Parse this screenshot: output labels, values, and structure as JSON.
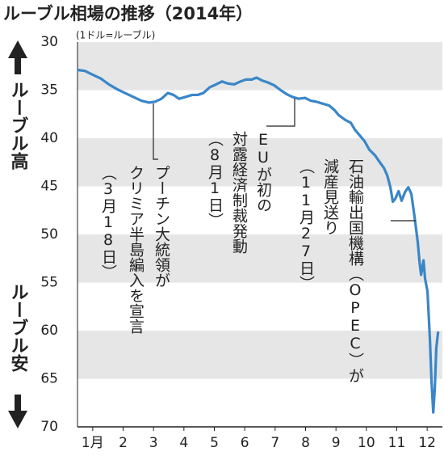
{
  "chart_data": {
    "type": "line",
    "title": "ルーブル相場の推移（2014年）",
    "unit": "(1ドル=ルーブル)",
    "y_label_top": "ルーブル高",
    "y_label_bottom": "ルーブル安",
    "inverted_y": true,
    "grid": "bands",
    "ylim": [
      30,
      70
    ],
    "yticks": [
      30,
      35,
      40,
      45,
      50,
      55,
      60,
      65,
      70
    ],
    "xlim": [
      0.5,
      12.5
    ],
    "xticks": [
      {
        "value": 1,
        "label": "1月"
      },
      2,
      3,
      4,
      5,
      6,
      7,
      8,
      9,
      10,
      11,
      12
    ],
    "series": [
      {
        "color": "#3a86c8",
        "x": [
          0.5,
          0.74,
          1.0,
          1.27,
          1.53,
          1.8,
          2.06,
          2.33,
          2.6,
          2.86,
          3.05,
          3.26,
          3.47,
          3.66,
          3.84,
          4.06,
          4.27,
          4.45,
          4.64,
          4.85,
          5.06,
          5.25,
          5.43,
          5.65,
          5.86,
          6.04,
          6.23,
          6.39,
          6.57,
          6.76,
          6.97,
          7.18,
          7.37,
          7.56,
          7.77,
          7.98,
          8.17,
          8.35,
          8.56,
          8.78,
          8.96,
          9.09,
          9.31,
          9.49,
          9.62,
          9.78,
          9.94,
          10.1,
          10.29,
          10.42,
          10.58,
          10.69,
          10.79,
          10.87,
          10.95,
          11.06,
          11.16,
          11.27,
          11.38,
          11.48,
          11.59,
          11.69,
          11.75,
          11.8,
          11.88,
          11.93,
          12.01,
          12.09,
          12.14,
          12.2,
          12.25,
          12.3,
          12.36
        ],
        "values": [
          32.9,
          33.0,
          33.4,
          33.8,
          34.4,
          34.9,
          35.3,
          35.7,
          36.1,
          36.3,
          36.2,
          35.9,
          35.3,
          35.5,
          35.9,
          35.7,
          35.5,
          35.5,
          35.3,
          34.7,
          34.4,
          34.1,
          34.3,
          34.4,
          34.1,
          33.9,
          33.9,
          33.7,
          34.0,
          34.2,
          34.5,
          35.0,
          35.4,
          35.7,
          35.9,
          35.8,
          36.1,
          36.2,
          36.4,
          36.6,
          37.1,
          37.6,
          38.1,
          38.4,
          39.1,
          39.7,
          40.3,
          41.2,
          41.8,
          42.4,
          43.1,
          43.9,
          45.1,
          46.6,
          46.3,
          45.5,
          46.5,
          45.6,
          45.1,
          45.8,
          48.3,
          50.8,
          52.9,
          54.2,
          52.7,
          54.6,
          55.9,
          60.9,
          65.1,
          68.5,
          66.0,
          61.8,
          60.1
        ]
      }
    ],
    "annotations": [
      {
        "lines": [
          "プーチン大統領が",
          "クリミア半島編入を宣言",
          "（3月18日）"
        ]
      },
      {
        "lines": [
          "EUが初の",
          "対露経済制裁発動",
          "（8月1日）"
        ]
      },
      {
        "lines": [
          "石油輸出国機構（OPEC）が",
          "減産見送り",
          "（11月27日）"
        ]
      }
    ]
  }
}
